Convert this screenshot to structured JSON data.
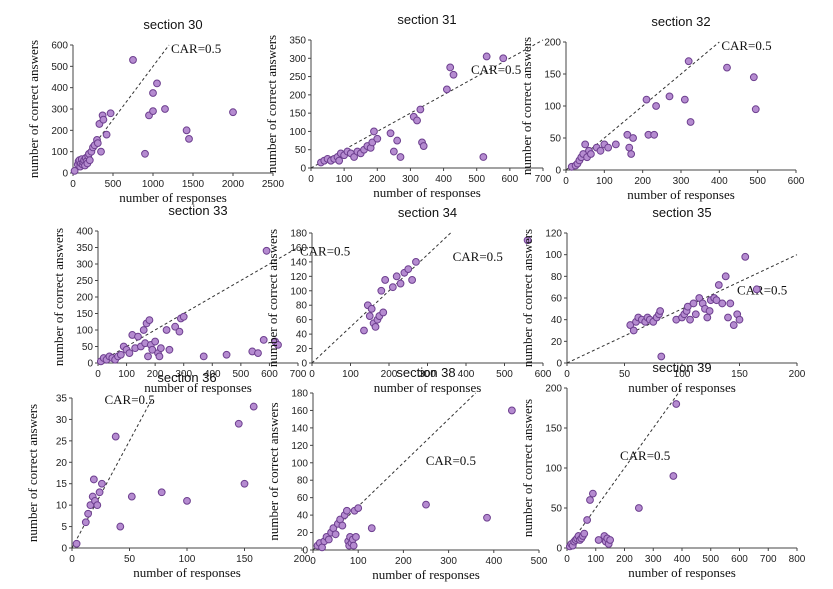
{
  "charts": [
    {
      "type": "scatter",
      "title": "section 30",
      "xlabel": "number of responses",
      "ylabel": "number of correct answers",
      "xlim": [
        0,
        2500
      ],
      "ylim": [
        0,
        600
      ],
      "xticks": [
        0,
        500,
        1000,
        1500,
        2000,
        2500
      ],
      "yticks": [
        0,
        100,
        200,
        300,
        400,
        500,
        600
      ],
      "ref_line": {
        "label": "CAR=0.5",
        "slope": 0.5
      },
      "marker_color": "#b58bd0",
      "marker_edge": "#6d3f8f",
      "points": [
        [
          20,
          10
        ],
        [
          60,
          40
        ],
        [
          70,
          55
        ],
        [
          80,
          60
        ],
        [
          90,
          30
        ],
        [
          100,
          45
        ],
        [
          110,
          65
        ],
        [
          120,
          40
        ],
        [
          130,
          50
        ],
        [
          140,
          60
        ],
        [
          150,
          35
        ],
        [
          160,
          70
        ],
        [
          170,
          55
        ],
        [
          180,
          45
        ],
        [
          190,
          80
        ],
        [
          200,
          90
        ],
        [
          210,
          60
        ],
        [
          230,
          100
        ],
        [
          250,
          120
        ],
        [
          270,
          130
        ],
        [
          300,
          155
        ],
        [
          310,
          140
        ],
        [
          330,
          230
        ],
        [
          350,
          100
        ],
        [
          370,
          270
        ],
        [
          380,
          250
        ],
        [
          420,
          180
        ],
        [
          470,
          280
        ],
        [
          750,
          530
        ],
        [
          900,
          90
        ],
        [
          950,
          270
        ],
        [
          1000,
          375
        ],
        [
          1000,
          290
        ],
        [
          1050,
          420
        ],
        [
          1150,
          300
        ],
        [
          1420,
          200
        ],
        [
          1450,
          160
        ],
        [
          2000,
          285
        ]
      ]
    },
    {
      "type": "scatter",
      "title": "section 31",
      "xlabel": "number of responses",
      "ylabel": "number of correct answers",
      "xlim": [
        0,
        700
      ],
      "ylim": [
        0,
        350
      ],
      "xticks": [
        0,
        100,
        200,
        300,
        400,
        500,
        600,
        700
      ],
      "yticks": [
        0,
        50,
        100,
        150,
        200,
        250,
        300,
        350
      ],
      "ref_line": {
        "label": "CAR=0.5",
        "slope": 0.5
      },
      "marker_color": "#b58bd0",
      "marker_edge": "#6d3f8f",
      "points": [
        [
          30,
          15
        ],
        [
          40,
          20
        ],
        [
          50,
          25
        ],
        [
          60,
          20
        ],
        [
          70,
          25
        ],
        [
          80,
          30
        ],
        [
          85,
          20
        ],
        [
          90,
          40
        ],
        [
          100,
          35
        ],
        [
          110,
          45
        ],
        [
          120,
          40
        ],
        [
          130,
          30
        ],
        [
          140,
          45
        ],
        [
          150,
          40
        ],
        [
          160,
          50
        ],
        [
          170,
          60
        ],
        [
          180,
          55
        ],
        [
          185,
          70
        ],
        [
          190,
          100
        ],
        [
          200,
          80
        ],
        [
          240,
          95
        ],
        [
          250,
          45
        ],
        [
          260,
          75
        ],
        [
          270,
          30
        ],
        [
          310,
          140
        ],
        [
          320,
          130
        ],
        [
          330,
          160
        ],
        [
          335,
          70
        ],
        [
          340,
          60
        ],
        [
          410,
          215
        ],
        [
          420,
          275
        ],
        [
          430,
          255
        ],
        [
          520,
          30
        ],
        [
          530,
          305
        ],
        [
          580,
          300
        ]
      ]
    },
    {
      "type": "scatter",
      "title": "section 32",
      "xlabel": "number of responses",
      "ylabel": "number of correct answers",
      "xlim": [
        0,
        600
      ],
      "ylim": [
        0,
        200
      ],
      "xticks": [
        0,
        100,
        200,
        300,
        400,
        500,
        600
      ],
      "yticks": [
        0,
        50,
        100,
        150,
        200
      ],
      "ref_line": {
        "label": "CAR=0.5",
        "slope": 0.5
      },
      "marker_color": "#b58bd0",
      "marker_edge": "#6d3f8f",
      "points": [
        [
          15,
          5
        ],
        [
          25,
          7
        ],
        [
          30,
          10
        ],
        [
          35,
          15
        ],
        [
          40,
          20
        ],
        [
          45,
          25
        ],
        [
          50,
          40
        ],
        [
          55,
          20
        ],
        [
          60,
          30
        ],
        [
          65,
          25
        ],
        [
          80,
          35
        ],
        [
          90,
          30
        ],
        [
          100,
          40
        ],
        [
          110,
          35
        ],
        [
          130,
          40
        ],
        [
          160,
          55
        ],
        [
          165,
          35
        ],
        [
          170,
          25
        ],
        [
          175,
          50
        ],
        [
          210,
          110
        ],
        [
          215,
          55
        ],
        [
          230,
          55
        ],
        [
          235,
          100
        ],
        [
          270,
          115
        ],
        [
          310,
          110
        ],
        [
          320,
          170
        ],
        [
          325,
          75
        ],
        [
          420,
          160
        ],
        [
          490,
          145
        ],
        [
          495,
          95
        ]
      ]
    },
    {
      "type": "scatter",
      "title": "section 33",
      "xlabel": "number of responses",
      "ylabel": "number of correct answers",
      "xlim": [
        0,
        700
      ],
      "ylim": [
        0,
        400
      ],
      "xticks": [
        0,
        100,
        200,
        300,
        400,
        500,
        600,
        700
      ],
      "yticks": [
        0,
        50,
        100,
        150,
        200,
        250,
        300,
        350,
        400
      ],
      "ref_line": {
        "label": "CAR=0.5",
        "slope": 0.5
      },
      "marker_color": "#b58bd0",
      "marker_edge": "#6d3f8f",
      "points": [
        [
          10,
          5
        ],
        [
          20,
          15
        ],
        [
          30,
          10
        ],
        [
          40,
          20
        ],
        [
          50,
          15
        ],
        [
          60,
          10
        ],
        [
          70,
          20
        ],
        [
          80,
          25
        ],
        [
          90,
          50
        ],
        [
          100,
          40
        ],
        [
          110,
          30
        ],
        [
          120,
          85
        ],
        [
          130,
          45
        ],
        [
          140,
          80
        ],
        [
          150,
          50
        ],
        [
          160,
          100
        ],
        [
          165,
          60
        ],
        [
          170,
          120
        ],
        [
          175,
          20
        ],
        [
          180,
          130
        ],
        [
          185,
          55
        ],
        [
          190,
          40
        ],
        [
          200,
          65
        ],
        [
          210,
          30
        ],
        [
          215,
          20
        ],
        [
          220,
          45
        ],
        [
          240,
          100
        ],
        [
          250,
          40
        ],
        [
          270,
          110
        ],
        [
          285,
          95
        ],
        [
          290,
          135
        ],
        [
          300,
          140
        ],
        [
          370,
          20
        ],
        [
          450,
          25
        ],
        [
          540,
          35
        ],
        [
          560,
          30
        ],
        [
          580,
          70
        ],
        [
          590,
          340
        ],
        [
          620,
          65
        ],
        [
          630,
          55
        ]
      ]
    },
    {
      "type": "scatter",
      "title": "section 34",
      "xlabel": "number of responses",
      "ylabel": "number of correct answers",
      "xlim": [
        0,
        600
      ],
      "ylim": [
        0,
        180
      ],
      "xticks": [
        0,
        100,
        200,
        300,
        400,
        500,
        600
      ],
      "yticks": [
        0,
        20,
        40,
        60,
        80,
        100,
        120,
        140,
        160,
        180
      ],
      "ref_line": {
        "label": "CAR=0.5",
        "slope": 0.5
      },
      "marker_color": "#b58bd0",
      "marker_edge": "#6d3f8f",
      "points": [
        [
          135,
          45
        ],
        [
          145,
          80
        ],
        [
          150,
          65
        ],
        [
          155,
          75
        ],
        [
          160,
          55
        ],
        [
          165,
          50
        ],
        [
          170,
          60
        ],
        [
          175,
          65
        ],
        [
          180,
          100
        ],
        [
          185,
          70
        ],
        [
          190,
          115
        ],
        [
          210,
          105
        ],
        [
          220,
          120
        ],
        [
          230,
          110
        ],
        [
          240,
          125
        ],
        [
          250,
          130
        ],
        [
          260,
          115
        ],
        [
          270,
          140
        ],
        [
          560,
          170
        ]
      ]
    },
    {
      "type": "scatter",
      "title": "section 35",
      "xlabel": "number of responses",
      "ylabel": "number of correct answers",
      "xlim": [
        0,
        200
      ],
      "ylim": [
        0,
        120
      ],
      "xticks": [
        0,
        50,
        100,
        150,
        200
      ],
      "yticks": [
        0,
        20,
        40,
        60,
        80,
        100,
        120
      ],
      "ref_line": {
        "label": "CAR=0.5",
        "slope": 0.5
      },
      "marker_color": "#b58bd0",
      "marker_edge": "#6d3f8f",
      "points": [
        [
          55,
          35
        ],
        [
          58,
          30
        ],
        [
          60,
          38
        ],
        [
          62,
          42
        ],
        [
          65,
          40
        ],
        [
          68,
          38
        ],
        [
          70,
          42
        ],
        [
          72,
          40
        ],
        [
          75,
          38
        ],
        [
          78,
          42
        ],
        [
          80,
          45
        ],
        [
          81,
          48
        ],
        [
          82,
          6
        ],
        [
          95,
          40
        ],
        [
          100,
          42
        ],
        [
          102,
          45
        ],
        [
          104,
          48
        ],
        [
          105,
          52
        ],
        [
          107,
          40
        ],
        [
          110,
          55
        ],
        [
          112,
          45
        ],
        [
          115,
          60
        ],
        [
          118,
          55
        ],
        [
          120,
          50
        ],
        [
          122,
          42
        ],
        [
          124,
          48
        ],
        [
          125,
          58
        ],
        [
          128,
          60
        ],
        [
          130,
          58
        ],
        [
          132,
          72
        ],
        [
          135,
          55
        ],
        [
          138,
          80
        ],
        [
          140,
          42
        ],
        [
          142,
          55
        ],
        [
          145,
          35
        ],
        [
          148,
          45
        ],
        [
          150,
          40
        ],
        [
          155,
          98
        ],
        [
          165,
          68
        ]
      ]
    },
    {
      "type": "scatter",
      "title": "section 36",
      "xlabel": "number of responses",
      "ylabel": "number of correct answers",
      "xlim": [
        0,
        200
      ],
      "ylim": [
        0,
        35
      ],
      "xticks": [
        0,
        50,
        100,
        150,
        200
      ],
      "yticks": [
        0,
        5,
        10,
        15,
        20,
        25,
        30,
        35
      ],
      "ref_line": {
        "label": "CAR=0.5",
        "slope": 0.5
      },
      "marker_color": "#b58bd0",
      "marker_edge": "#6d3f8f",
      "points": [
        [
          4,
          1
        ],
        [
          12,
          6
        ],
        [
          14,
          8
        ],
        [
          16,
          10
        ],
        [
          18,
          12
        ],
        [
          19,
          16
        ],
        [
          20,
          11
        ],
        [
          22,
          10
        ],
        [
          24,
          13
        ],
        [
          26,
          15
        ],
        [
          38,
          26
        ],
        [
          42,
          5
        ],
        [
          52,
          12
        ],
        [
          78,
          13
        ],
        [
          100,
          11
        ],
        [
          145,
          29
        ],
        [
          150,
          15
        ],
        [
          158,
          33
        ]
      ]
    },
    {
      "type": "scatter",
      "title": "section 38",
      "xlabel": "number of responses",
      "ylabel": "number of correct answers",
      "xlim": [
        0,
        500
      ],
      "ylim": [
        0,
        180
      ],
      "xticks": [
        0,
        100,
        200,
        300,
        400,
        500
      ],
      "yticks": [
        0,
        20,
        40,
        60,
        80,
        100,
        120,
        140,
        160,
        180
      ],
      "ref_line": {
        "label": "CAR=0.5",
        "slope": 0.5
      },
      "marker_color": "#b58bd0",
      "marker_edge": "#6d3f8f",
      "points": [
        [
          10,
          5
        ],
        [
          15,
          8
        ],
        [
          20,
          3
        ],
        [
          25,
          10
        ],
        [
          30,
          15
        ],
        [
          35,
          12
        ],
        [
          40,
          20
        ],
        [
          45,
          25
        ],
        [
          50,
          18
        ],
        [
          55,
          30
        ],
        [
          60,
          35
        ],
        [
          65,
          28
        ],
        [
          70,
          40
        ],
        [
          75,
          45
        ],
        [
          78,
          10
        ],
        [
          80,
          5
        ],
        [
          82,
          15
        ],
        [
          85,
          8
        ],
        [
          88,
          12
        ],
        [
          90,
          5
        ],
        [
          92,
          45
        ],
        [
          95,
          15
        ],
        [
          100,
          48
        ],
        [
          130,
          25
        ],
        [
          250,
          52
        ],
        [
          385,
          37
        ],
        [
          440,
          160
        ]
      ]
    },
    {
      "type": "scatter",
      "title": "section 39",
      "xlabel": "number of responses",
      "ylabel": "number of correct answers",
      "xlim": [
        0,
        800
      ],
      "ylim": [
        0,
        200
      ],
      "xticks": [
        0,
        100,
        200,
        300,
        400,
        500,
        600,
        700,
        800
      ],
      "yticks": [
        0,
        50,
        100,
        150,
        200
      ],
      "ref_line": {
        "label": "CAR=0.5",
        "slope": 0.5
      },
      "marker_color": "#b58bd0",
      "marker_edge": "#6d3f8f",
      "points": [
        [
          10,
          2
        ],
        [
          15,
          5
        ],
        [
          20,
          3
        ],
        [
          25,
          8
        ],
        [
          30,
          10
        ],
        [
          35,
          12
        ],
        [
          40,
          15
        ],
        [
          45,
          10
        ],
        [
          50,
          12
        ],
        [
          55,
          15
        ],
        [
          60,
          18
        ],
        [
          70,
          35
        ],
        [
          80,
          60
        ],
        [
          90,
          68
        ],
        [
          110,
          10
        ],
        [
          130,
          15
        ],
        [
          135,
          8
        ],
        [
          140,
          12
        ],
        [
          145,
          5
        ],
        [
          150,
          10
        ],
        [
          250,
          50
        ],
        [
          370,
          90
        ],
        [
          380,
          180
        ]
      ]
    }
  ]
}
